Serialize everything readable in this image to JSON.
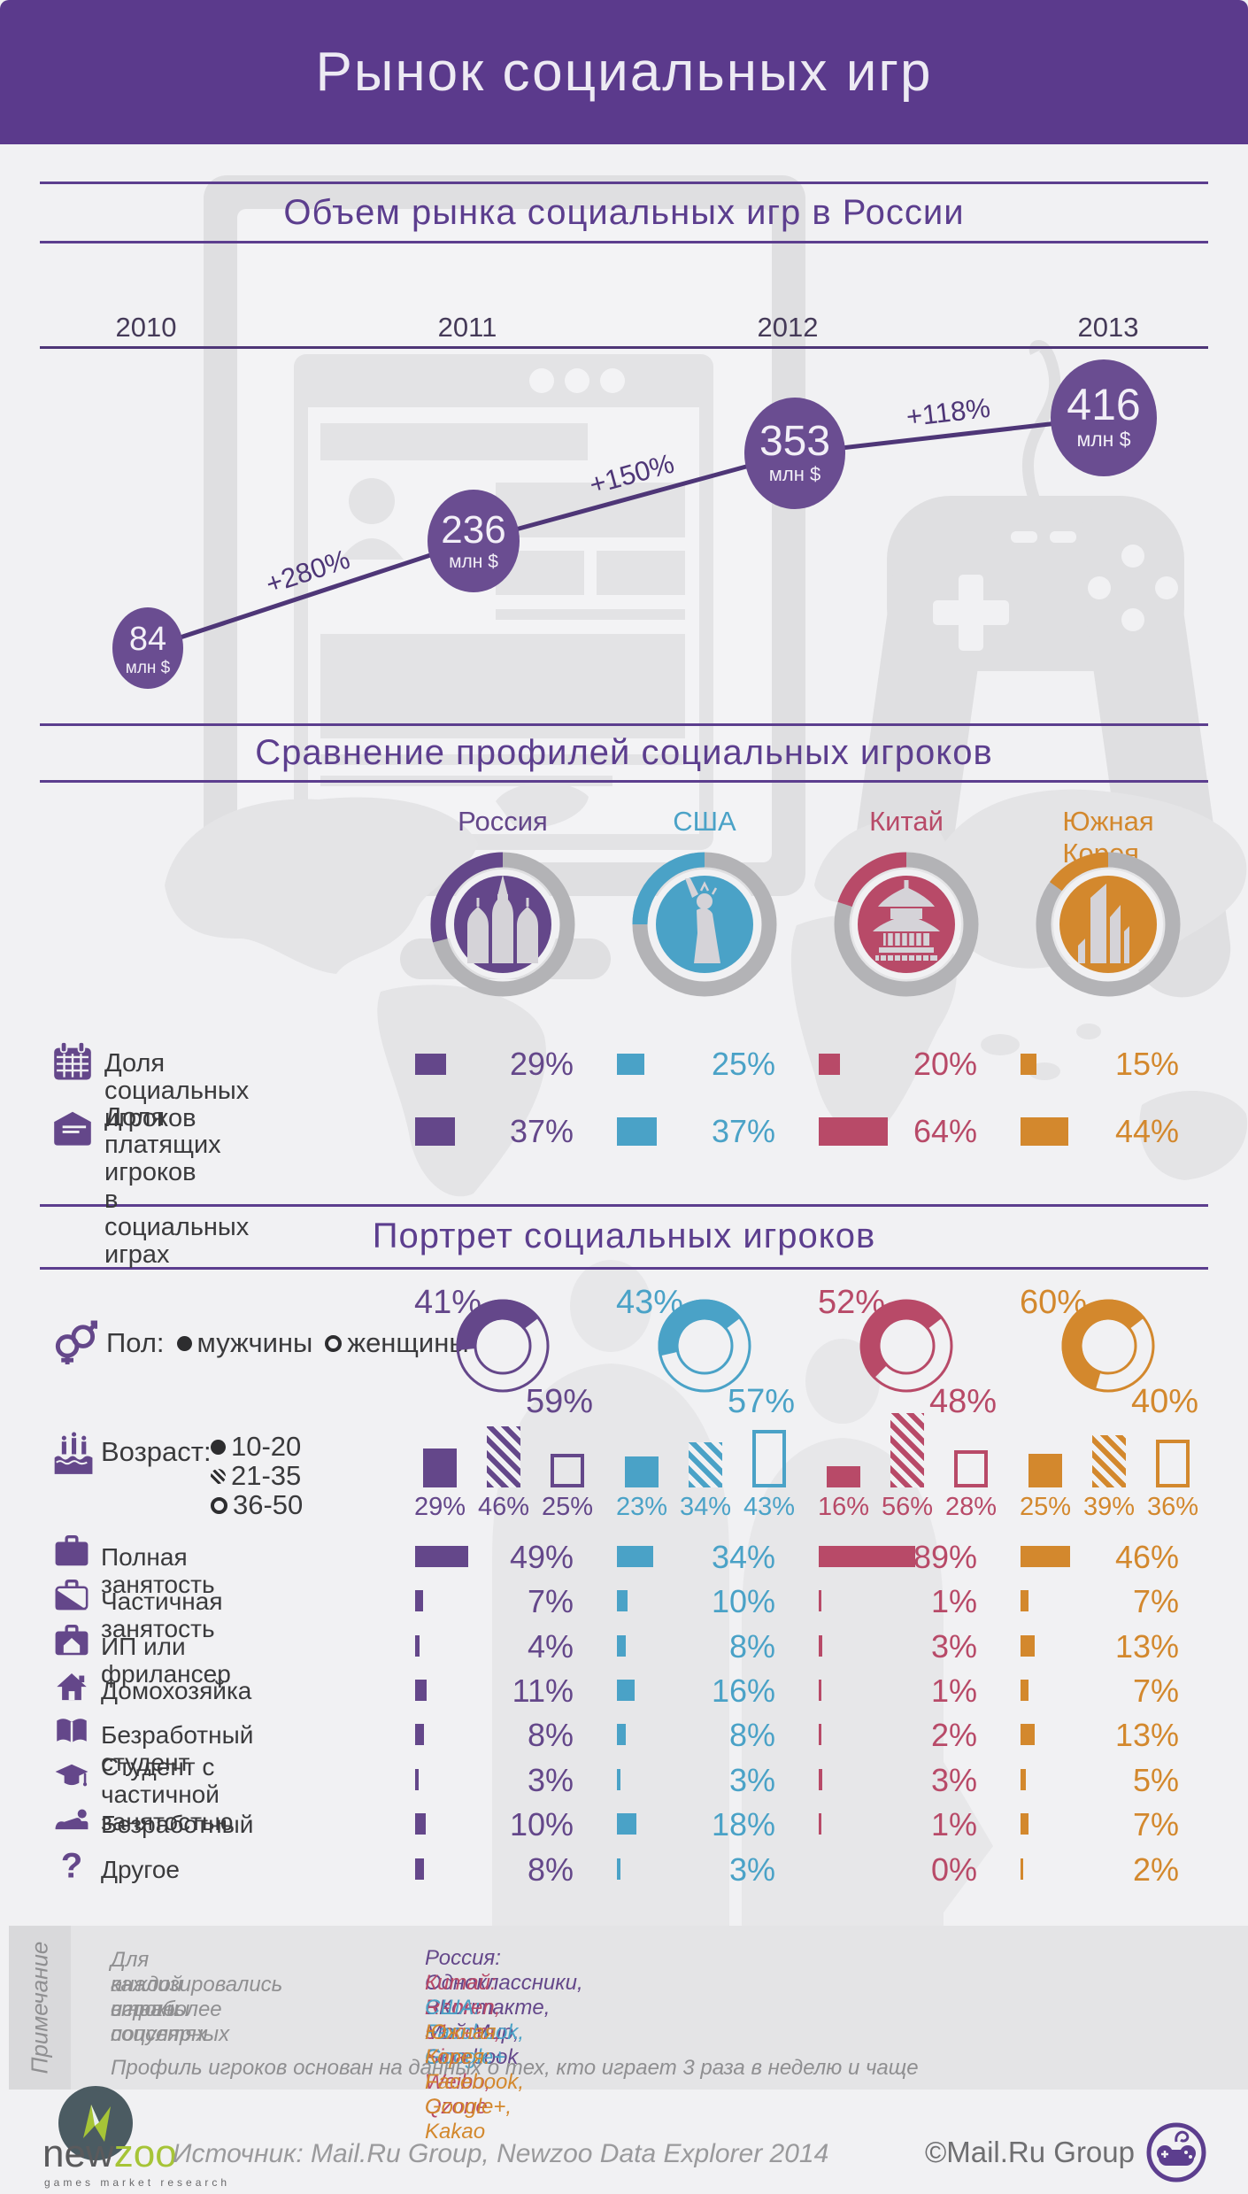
{
  "header": {
    "title": "Рынок социальных игр"
  },
  "sections": {
    "market_title": "Объем рынка социальных игр в России",
    "comparison_title": "Сравнение профилей социальных игроков",
    "portrait_title": "Портрет социальных игроков"
  },
  "market": {
    "years": [
      "2010",
      "2011",
      "2012",
      "2013"
    ],
    "values": [
      "84",
      "236",
      "353",
      "416"
    ],
    "unit": "млн $",
    "growth": [
      "+280%",
      "+150%",
      "+118%"
    ]
  },
  "countries": [
    {
      "name": "Россия",
      "color": "#64478a",
      "landmark": "st-basils-cathedral-icon"
    },
    {
      "name": "США",
      "color": "#4aa2c7",
      "landmark": "statue-of-liberty-icon"
    },
    {
      "name": "Китай",
      "color": "#b84a68",
      "landmark": "pagoda-icon"
    },
    {
      "name": "Южная Корея",
      "color": "#d3882d",
      "landmark": "korean-towers-icon"
    }
  ],
  "comparison_rows": [
    {
      "icon": "calendar-icon",
      "label": "Доля социальных игроков",
      "label2": "",
      "numeric": [
        29,
        25,
        20,
        15
      ]
    },
    {
      "icon": "wallet-icon",
      "label": "Доля платящих игроков",
      "label2": "в социальных играх",
      "numeric": [
        37,
        37,
        64,
        44
      ]
    }
  ],
  "gender": {
    "label": "Пол:",
    "men_label": "мужчины",
    "women_label": "женщины",
    "men": [
      41,
      43,
      52,
      60
    ],
    "women": [
      59,
      57,
      48,
      40
    ]
  },
  "age": {
    "label": "Возраст:",
    "groups": [
      {
        "style": "solid",
        "label": "10-20"
      },
      {
        "style": "hatched",
        "label": "21-35"
      },
      {
        "style": "outline",
        "label": "36-50"
      }
    ],
    "values": [
      [
        29,
        46,
        25
      ],
      [
        23,
        34,
        43
      ],
      [
        16,
        56,
        28
      ],
      [
        25,
        39,
        36
      ]
    ]
  },
  "employment": [
    {
      "icon": "briefcase-icon",
      "label": "Полная занятость",
      "label2": "",
      "values": [
        49,
        34,
        89,
        46
      ]
    },
    {
      "icon": "briefcase-pen-icon",
      "label": "Частичная занятость",
      "label2": "",
      "values": [
        7,
        10,
        1,
        7
      ]
    },
    {
      "icon": "briefcase-home-icon",
      "label": "ИП или фрилансер",
      "label2": "",
      "values": [
        4,
        8,
        3,
        13
      ]
    },
    {
      "icon": "home-icon",
      "label": "Домохозяйка",
      "label2": "",
      "values": [
        11,
        16,
        1,
        7
      ]
    },
    {
      "icon": "open-book-icon",
      "label": "Безработный студент",
      "label2": "",
      "values": [
        8,
        8,
        2,
        13
      ]
    },
    {
      "icon": "graduation-cap-icon",
      "label": "Студент с частичной",
      "label2": "занятостью",
      "values": [
        3,
        3,
        3,
        5
      ]
    },
    {
      "icon": "reclining-person-icon",
      "label": "Безработный",
      "label2": "",
      "values": [
        10,
        18,
        1,
        7
      ]
    },
    {
      "icon": "question-mark-icon",
      "label": "Другое",
      "label2": "",
      "values": [
        8,
        3,
        0,
        2
      ]
    }
  ],
  "notes": {
    "sidebar_label": "Примечание",
    "left_lines": [
      "Для каждой страны",
      "анализировались игроки",
      "в наиболее популярных",
      "соцсетях"
    ],
    "sources": [
      {
        "text": "Россия:  Одноклассники, ВКонтакте, Мой Мир, Facebook",
        "color": "#64478a"
      },
      {
        "text": "Китай:  Renren, 51.com, Sina Weibo, Qzone",
        "color": "#b84a68"
      },
      {
        "text": "США: Facebook, Google+",
        "color": "#4aa2c7"
      },
      {
        "text": "Южная Корея: Facebook, Google+, Kakao",
        "color": "#d3882d"
      }
    ],
    "bottom_line": "Профиль игроков основан на данных о тех, кто играет 3 раза в неделю и чаще"
  },
  "footer": {
    "logo_part1": "new",
    "logo_part2": "zoo",
    "logo_tagline": "games market research",
    "source_line": "Источник: Mail.Ru Group, Newzoo Data Explorer 2014",
    "copyright": "©Mail.Ru Group"
  },
  "colors": {
    "background": "#f1f1f3",
    "header_bg": "#5b3a8c",
    "accent_purple": "#5c3e8e",
    "chart_line": "#4e3677",
    "bubble_fill": "#6a4d91",
    "ring_gray": "#b3b3b6",
    "silhouette_gray": "#dfdfe1",
    "map_gray": "#e4e4e6",
    "text_dark": "#3a3a3c",
    "text_gray": "#8f8f91"
  },
  "chart_data": [
    {
      "type": "line",
      "title": "Объем рынка социальных игр в России",
      "x": [
        "2010",
        "2011",
        "2012",
        "2013"
      ],
      "values": [
        84,
        236,
        353,
        416
      ],
      "unit": "млн $",
      "growth_labels": [
        "+280%",
        "+150%",
        "+118%"
      ],
      "grid": false,
      "legend": "none"
    },
    {
      "type": "bar",
      "title": "Доля социальных игроков",
      "categories": [
        "Россия",
        "США",
        "Китай",
        "Южная Корея"
      ],
      "values": [
        29,
        25,
        20,
        15
      ],
      "unit": "%"
    },
    {
      "type": "bar",
      "title": "Доля платящих игроков в социальных играх",
      "categories": [
        "Россия",
        "США",
        "Китай",
        "Южная Корея"
      ],
      "values": [
        37,
        37,
        64,
        44
      ],
      "unit": "%"
    },
    {
      "type": "pie",
      "title": "Пол",
      "categories": [
        "Россия",
        "США",
        "Китай",
        "Южная Корея"
      ],
      "series": [
        {
          "name": "мужчины",
          "values": [
            41,
            43,
            52,
            60
          ]
        },
        {
          "name": "женщины",
          "values": [
            59,
            57,
            48,
            40
          ]
        }
      ],
      "unit": "%"
    },
    {
      "type": "bar",
      "title": "Возраст",
      "categories": [
        "Россия",
        "США",
        "Китай",
        "Южная Корея"
      ],
      "series": [
        {
          "name": "10-20",
          "values": [
            29,
            23,
            16,
            25
          ]
        },
        {
          "name": "21-35",
          "values": [
            46,
            34,
            56,
            39
          ]
        },
        {
          "name": "36-50",
          "values": [
            25,
            43,
            28,
            36
          ]
        }
      ],
      "unit": "%"
    },
    {
      "type": "bar",
      "title": "Занятость",
      "categories": [
        "Россия",
        "США",
        "Китай",
        "Южная Корея"
      ],
      "series": [
        {
          "name": "Полная занятость",
          "values": [
            49,
            34,
            89,
            46
          ]
        },
        {
          "name": "Частичная занятость",
          "values": [
            7,
            10,
            1,
            7
          ]
        },
        {
          "name": "ИП или фрилансер",
          "values": [
            4,
            8,
            3,
            13
          ]
        },
        {
          "name": "Домохозяйка",
          "values": [
            11,
            16,
            1,
            7
          ]
        },
        {
          "name": "Безработный студент",
          "values": [
            8,
            8,
            2,
            13
          ]
        },
        {
          "name": "Студент с частичной занятостью",
          "values": [
            3,
            3,
            3,
            5
          ]
        },
        {
          "name": "Безработный",
          "values": [
            10,
            18,
            1,
            7
          ]
        },
        {
          "name": "Другое",
          "values": [
            8,
            3,
            0,
            2
          ]
        }
      ],
      "unit": "%"
    }
  ]
}
